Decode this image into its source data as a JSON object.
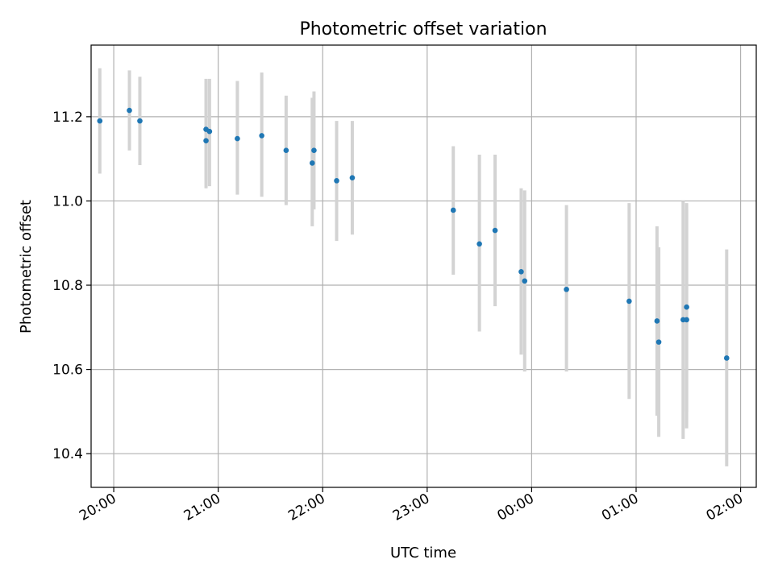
{
  "chart_data": {
    "type": "scatter",
    "title": "Photometric offset variation",
    "xlabel": "UTC time",
    "ylabel": "Photometric offset",
    "grid": true,
    "xlim": [
      "19:47",
      "02:09"
    ],
    "ylim": [
      10.32,
      11.37
    ],
    "x_ticks": [
      "20:00",
      "21:00",
      "22:00",
      "23:00",
      "00:00",
      "01:00",
      "02:00"
    ],
    "y_ticks": [
      "10.4",
      "10.6",
      "10.8",
      "11.0",
      "11.2"
    ],
    "colors": {
      "points": "#1f77b4",
      "error_bars": "#d3d3d3",
      "grid": "#b0b0b0"
    },
    "points": [
      {
        "x": "19:52",
        "y": 11.19,
        "y_low": 11.065,
        "y_high": 11.315
      },
      {
        "x": "20:09",
        "y": 11.215,
        "y_low": 11.12,
        "y_high": 11.31
      },
      {
        "x": "20:15",
        "y": 11.19,
        "y_low": 11.085,
        "y_high": 11.295
      },
      {
        "x": "20:53",
        "y": 11.17,
        "y_low": 11.05,
        "y_high": 11.29
      },
      {
        "x": "20:53",
        "y": 11.143,
        "y_low": 11.03,
        "y_high": 11.285
      },
      {
        "x": "20:55",
        "y": 11.165,
        "y_low": 11.035,
        "y_high": 11.29
      },
      {
        "x": "21:11",
        "y": 11.148,
        "y_low": 11.015,
        "y_high": 11.285
      },
      {
        "x": "21:25",
        "y": 11.155,
        "y_low": 11.01,
        "y_high": 11.305
      },
      {
        "x": "21:39",
        "y": 11.12,
        "y_low": 10.99,
        "y_high": 11.25
      },
      {
        "x": "21:54",
        "y": 11.09,
        "y_low": 10.94,
        "y_high": 11.245
      },
      {
        "x": "21:55",
        "y": 11.12,
        "y_low": 10.98,
        "y_high": 11.26
      },
      {
        "x": "22:08",
        "y": 11.048,
        "y_low": 10.905,
        "y_high": 11.19
      },
      {
        "x": "22:17",
        "y": 11.055,
        "y_low": 10.92,
        "y_high": 11.19
      },
      {
        "x": "23:15",
        "y": 10.978,
        "y_low": 10.825,
        "y_high": 11.13
      },
      {
        "x": "23:30",
        "y": 10.898,
        "y_low": 10.69,
        "y_high": 11.11
      },
      {
        "x": "23:39",
        "y": 10.93,
        "y_low": 10.75,
        "y_high": 11.11
      },
      {
        "x": "23:54",
        "y": 10.832,
        "y_low": 10.635,
        "y_high": 11.03
      },
      {
        "x": "23:56",
        "y": 10.81,
        "y_low": 10.595,
        "y_high": 11.025
      },
      {
        "x": "00:20",
        "y": 10.79,
        "y_low": 10.595,
        "y_high": 10.99
      },
      {
        "x": "00:56",
        "y": 10.762,
        "y_low": 10.53,
        "y_high": 10.995
      },
      {
        "x": "01:12",
        "y": 10.715,
        "y_low": 10.49,
        "y_high": 10.94
      },
      {
        "x": "01:13",
        "y": 10.665,
        "y_low": 10.44,
        "y_high": 10.89
      },
      {
        "x": "01:27",
        "y": 10.718,
        "y_low": 10.435,
        "y_high": 11.0
      },
      {
        "x": "01:29",
        "y": 10.748,
        "y_low": 10.5,
        "y_high": 10.995
      },
      {
        "x": "01:29",
        "y": 10.718,
        "y_low": 10.46,
        "y_high": 10.98
      },
      {
        "x": "01:52",
        "y": 10.627,
        "y_low": 10.37,
        "y_high": 10.885
      }
    ]
  }
}
